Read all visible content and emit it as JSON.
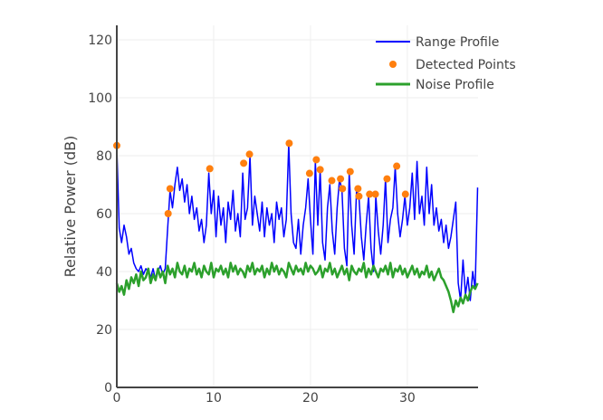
{
  "chart_data": {
    "type": "line",
    "title": "",
    "xlabel": "",
    "ylabel": "Relative Power (dB)",
    "xlim": [
      0,
      37.3
    ],
    "ylim": [
      0,
      125
    ],
    "x_ticks": [
      "0",
      "10",
      "20",
      "30"
    ],
    "y_ticks": [
      "0",
      "20",
      "40",
      "60",
      "80",
      "100",
      "120"
    ],
    "grid": true,
    "legend_position": "top-right",
    "series": [
      {
        "name": "Range Profile",
        "kind": "line",
        "color": "#0000ff",
        "x_start": 0,
        "x_step": 0.25,
        "values": [
          83,
          55,
          50,
          56,
          52,
          46,
          48,
          43,
          41,
          40,
          42,
          39,
          41,
          40,
          38,
          41,
          37,
          40,
          42,
          39,
          41,
          55,
          68,
          62,
          70,
          76,
          68,
          72,
          64,
          70,
          60,
          66,
          58,
          62,
          54,
          58,
          50,
          56,
          74,
          60,
          68,
          52,
          66,
          56,
          62,
          50,
          64,
          58,
          68,
          54,
          60,
          52,
          74,
          58,
          62,
          80,
          56,
          66,
          60,
          54,
          64,
          52,
          62,
          56,
          60,
          50,
          64,
          58,
          62,
          52,
          58,
          84,
          60,
          50,
          48,
          58,
          46,
          56,
          62,
          72,
          58,
          46,
          78,
          56,
          75,
          50,
          44,
          62,
          70,
          54,
          46,
          62,
          72,
          68,
          48,
          42,
          74,
          56,
          46,
          68,
          66,
          52,
          44,
          56,
          66,
          48,
          40,
          66,
          54,
          46,
          56,
          72,
          50,
          58,
          62,
          76,
          60,
          52,
          58,
          66,
          56,
          62,
          74,
          58,
          78,
          60,
          66,
          56,
          76,
          60,
          70,
          56,
          62,
          54,
          58,
          50,
          56,
          48,
          52,
          58,
          64,
          36,
          30,
          44,
          32,
          38,
          30,
          40,
          34,
          69
        ]
      },
      {
        "name": "Detected Points",
        "kind": "scatter",
        "color": "#ff7f0e",
        "x": [
          0,
          5.3,
          5.5,
          9.6,
          13.1,
          13.7,
          17.8,
          19.9,
          20.6,
          21.0,
          22.2,
          23.1,
          23.3,
          24.1,
          24.9,
          25.0,
          26.1,
          26.7,
          27.9,
          28.9,
          29.8
        ],
        "y": [
          83.5,
          60,
          68.6,
          75.5,
          77.4,
          80.5,
          84.3,
          73.9,
          78.6,
          75.2,
          71.4,
          72,
          68.6,
          74.5,
          68.6,
          66,
          66.7,
          66.7,
          72,
          76.4,
          66.7
        ]
      },
      {
        "name": "Noise Profile",
        "kind": "line",
        "color": "#2ca02c",
        "x_start": 0,
        "x_step": 0.25,
        "values": [
          36,
          33,
          35,
          32,
          37,
          34,
          38,
          36,
          39,
          35,
          40,
          37,
          38,
          41,
          36,
          39,
          37,
          41,
          38,
          40,
          36,
          42,
          39,
          41,
          38,
          43,
          40,
          39,
          42,
          38,
          41,
          40,
          43,
          39,
          41,
          38,
          42,
          40,
          39,
          43,
          38,
          41,
          40,
          42,
          39,
          41,
          38,
          43,
          40,
          42,
          39,
          41,
          40,
          38,
          42,
          40,
          43,
          39,
          41,
          40,
          42,
          38,
          41,
          39,
          43,
          40,
          42,
          39,
          41,
          40,
          38,
          43,
          41,
          39,
          42,
          40,
          41,
          39,
          43,
          40,
          42,
          41,
          39,
          40,
          42,
          38,
          41,
          40,
          43,
          39,
          41,
          38,
          40,
          42,
          39,
          41,
          37,
          42,
          40,
          39,
          41,
          40,
          43,
          38,
          41,
          39,
          42,
          40,
          38,
          41,
          40,
          42,
          39,
          43,
          38,
          41,
          40,
          42,
          39,
          41,
          38,
          40,
          42,
          39,
          41,
          38,
          40,
          39,
          42,
          38,
          40,
          37,
          39,
          41,
          38,
          37,
          35,
          33,
          30,
          26,
          30,
          28,
          31,
          29,
          32,
          30,
          33,
          35,
          34,
          36
        ]
      }
    ]
  }
}
